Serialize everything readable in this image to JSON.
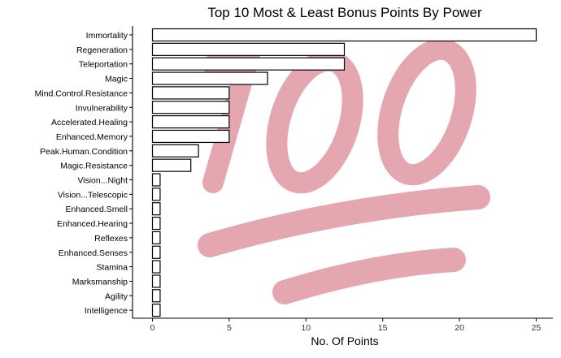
{
  "chart_data": {
    "type": "bar",
    "orientation": "horizontal",
    "title": "Top 10 Most & Least Bonus Points By Power",
    "xlabel": "No. Of Points",
    "ylabel": "",
    "xlim": [
      0,
      25
    ],
    "xticks": [
      0,
      5,
      10,
      15,
      20,
      25
    ],
    "grid": false,
    "bar_fill": "#ffffff",
    "bar_stroke": "#000000",
    "background_emoji_color": "#e3a1ab",
    "categories": [
      "Immortality",
      "Regeneration",
      "Teleportation",
      "Magic",
      "Mind.Control.Resistance",
      "Invulnerability",
      "Accelerated.Healing",
      "Enhanced.Memory",
      "Peak.Human.Condition",
      "Magic.Resistance",
      "Vision...Night",
      "Vision...Telescopic",
      "Enhanced.Smell",
      "Enhanced.Hearing",
      "Reflexes",
      "Enhanced.Senses",
      "Stamina",
      "Marksmanship",
      "Agility",
      "Intelligence"
    ],
    "values": [
      25,
      12.5,
      12.5,
      7.5,
      5,
      5,
      5,
      5,
      3,
      2.5,
      0.5,
      0.5,
      0.5,
      0.5,
      0.5,
      0.5,
      0.5,
      0.5,
      0.5,
      0.5
    ]
  }
}
